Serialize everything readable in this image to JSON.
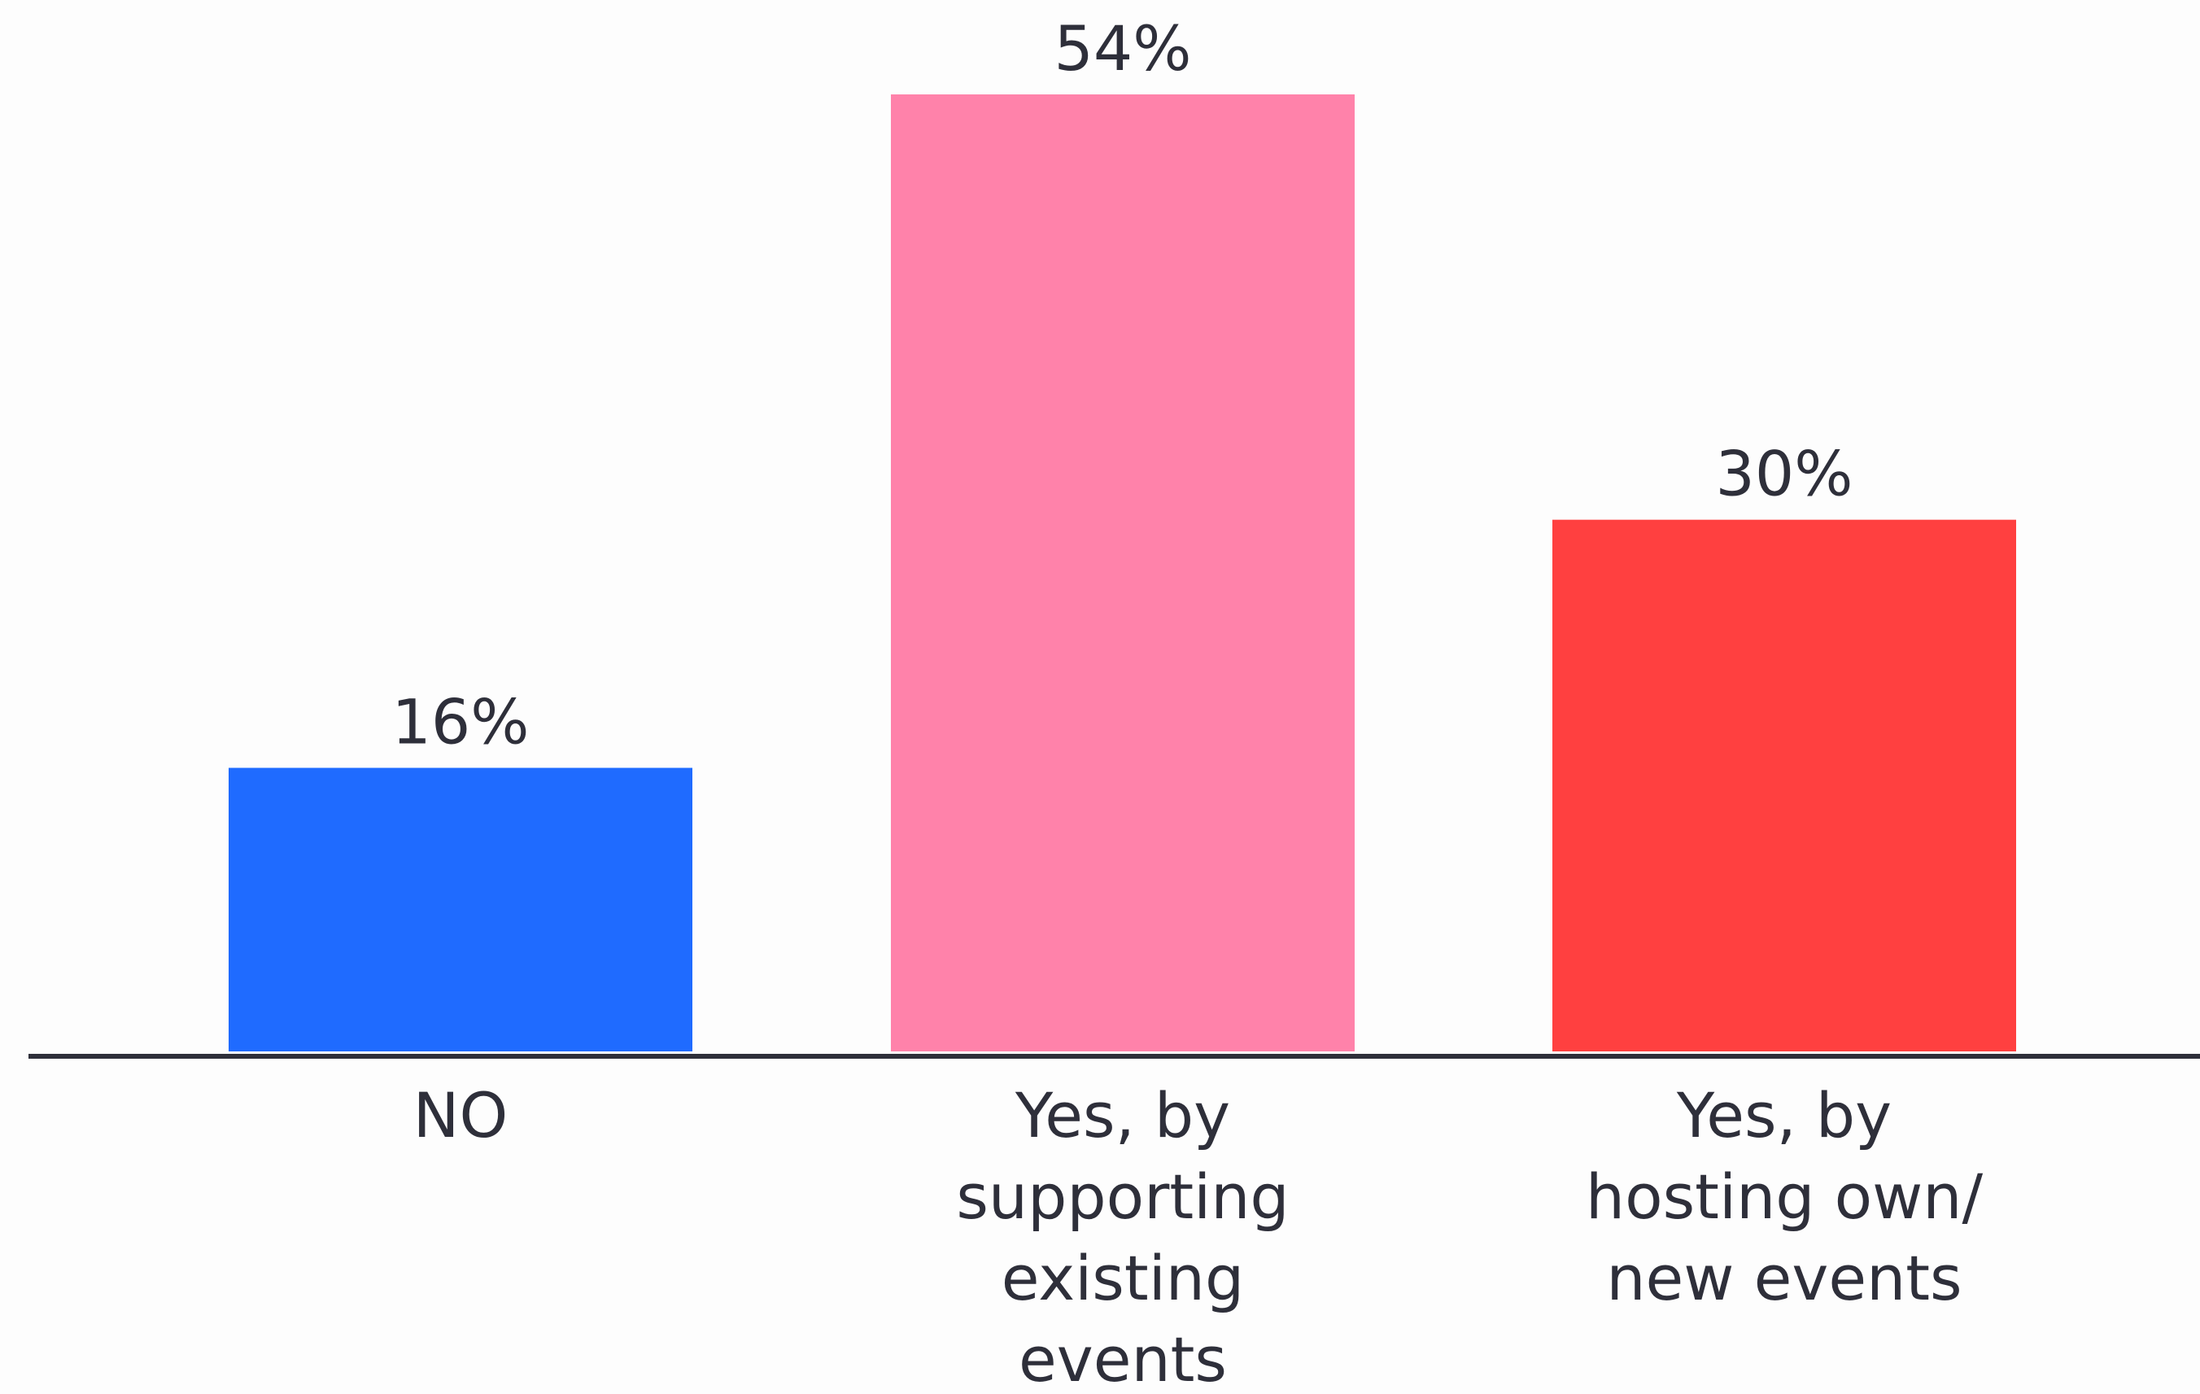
{
  "chart_data": {
    "type": "bar",
    "categories": [
      [
        "NO"
      ],
      [
        "Yes, by",
        "supporting",
        "existing",
        "events"
      ],
      [
        "Yes, by",
        "hosting own/",
        "new events"
      ]
    ],
    "values": [
      16,
      54,
      30
    ],
    "value_labels": [
      "16%",
      "54%",
      "30%"
    ],
    "bar_colors": [
      "#1f6bff",
      "#ff82aa",
      "#ff4040"
    ],
    "axis_color": "#2e2f3a",
    "ylim": [
      0,
      54
    ],
    "grid": false,
    "legend": "none"
  }
}
